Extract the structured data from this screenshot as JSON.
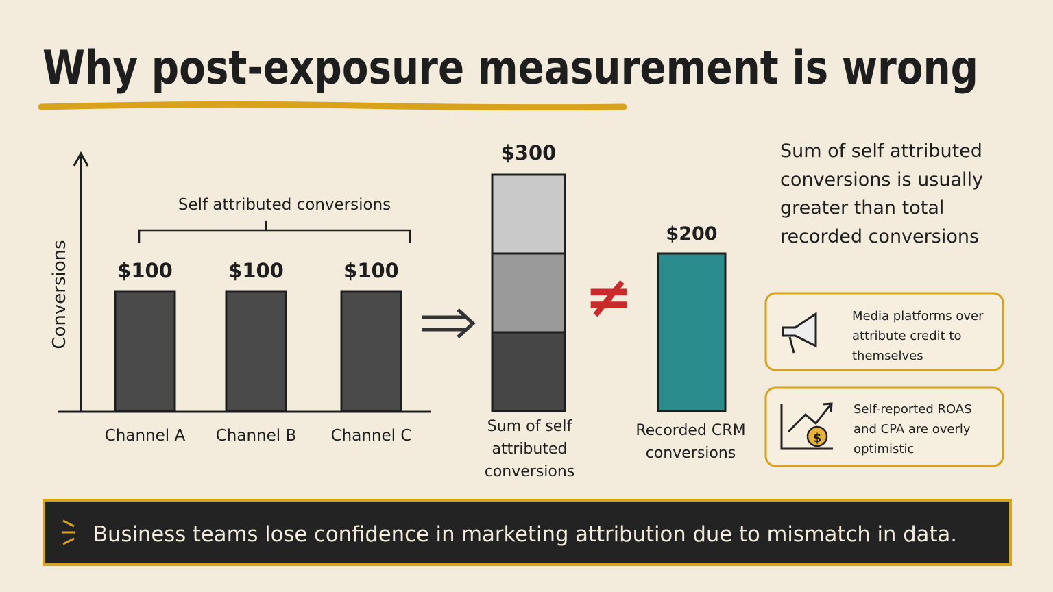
{
  "title": "Why post-exposure measurement is wrong",
  "chart": {
    "y_label": "Conversions",
    "bracket_label": "Self attributed conversions",
    "categories": [
      "Channel A",
      "Channel B",
      "Channel C"
    ],
    "values": [
      100,
      100,
      100
    ],
    "value_labels": [
      "$100",
      "$100",
      "$100"
    ],
    "sum": {
      "label": "Sum of self attributed conversions",
      "value": 300,
      "value_label": "$300"
    },
    "crm": {
      "label": "Recorded CRM conversions",
      "value": 200,
      "value_label": "$200"
    }
  },
  "note": "Sum of self attributed conversions is usually greater than total recorded conversions",
  "callouts": [
    "Media platforms over attribute credit to themselves",
    "Self-reported ROAS and CPA are overly optimistic"
  ],
  "footer": "Business teams lose confidence in marketing attribution due to mismatch in data."
}
